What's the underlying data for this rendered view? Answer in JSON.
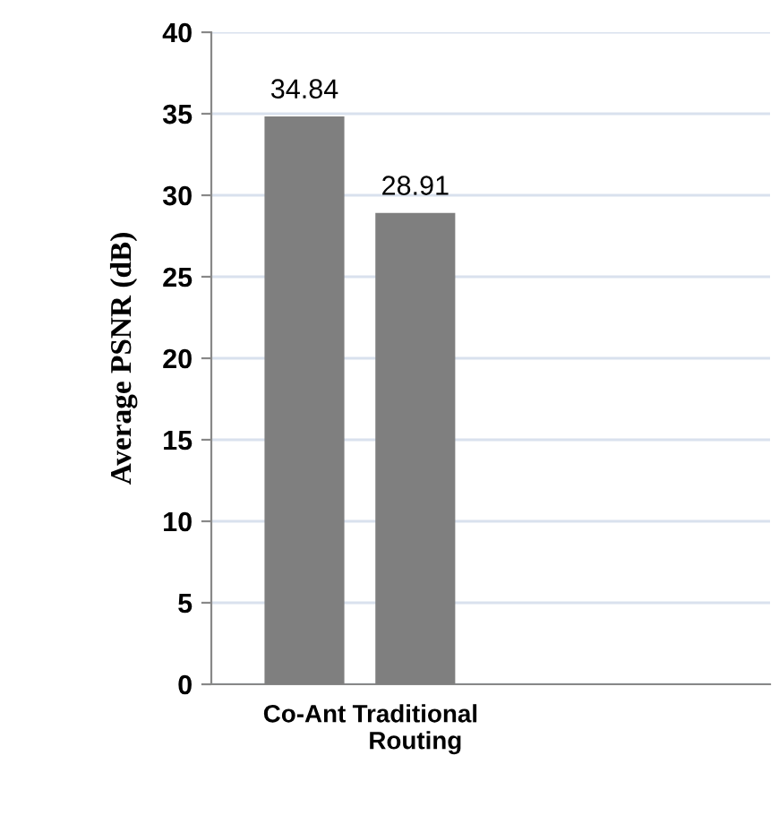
{
  "chart_data": {
    "type": "bar",
    "ylabel": "Average PSNR (dB)",
    "categories": [
      "Co-Ant",
      "Traditional\nRouting"
    ],
    "values": [
      34.84,
      28.91
    ],
    "color": "#7f7f7f",
    "ylim": [
      0,
      40
    ],
    "yticks": [
      0,
      5,
      10,
      15,
      20,
      25,
      30,
      35,
      40
    ],
    "grid": "y",
    "data_labels": true
  }
}
